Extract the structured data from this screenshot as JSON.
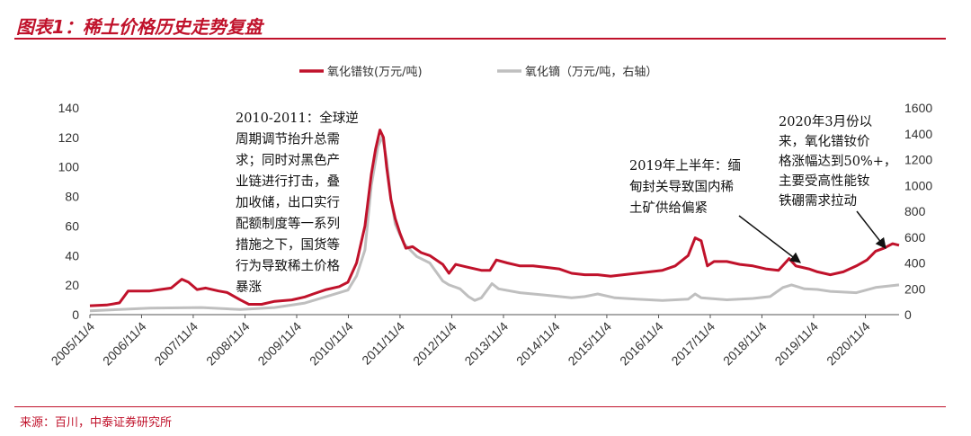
{
  "header": {
    "title": "图表1：稀土价格历史走势复盘"
  },
  "footer": {
    "source": "来源：百川，中泰证券研究所"
  },
  "chart_data": {
    "type": "line",
    "title": "图表1：稀土价格历史走势复盘",
    "x_labels": [
      "2005/11/4",
      "2006/11/4",
      "2007/11/4",
      "2008/11/4",
      "2009/11/4",
      "2010/11/4",
      "2011/11/4",
      "2012/11/4",
      "2013/11/4",
      "2014/11/4",
      "2015/11/4",
      "2016/11/4",
      "2017/11/4",
      "2018/11/4",
      "2019/11/4",
      "2020/11/4"
    ],
    "x_range": [
      "2005-11-04",
      "2021-06-30"
    ],
    "ylim_left": [
      0,
      140
    ],
    "ylim_right": [
      0,
      1600
    ],
    "yticks_left": [
      0,
      20,
      40,
      60,
      80,
      100,
      120,
      140
    ],
    "yticks_right": [
      0,
      200,
      400,
      600,
      800,
      1000,
      1200,
      1400,
      1600
    ],
    "legend_position": "top-center",
    "series": [
      {
        "name": "氧化镨钕(万元/吨)",
        "axis": "left",
        "color": "#c0122b",
        "points": [
          [
            "2005-11-04",
            6
          ],
          [
            "2006-03-01",
            6.5
          ],
          [
            "2006-06-01",
            8
          ],
          [
            "2006-08-01",
            16
          ],
          [
            "2007-01-01",
            16
          ],
          [
            "2007-06-01",
            18
          ],
          [
            "2007-08-15",
            24
          ],
          [
            "2007-10-01",
            22
          ],
          [
            "2007-12-01",
            17
          ],
          [
            "2008-02-01",
            18
          ],
          [
            "2008-05-01",
            16
          ],
          [
            "2008-07-01",
            15
          ],
          [
            "2008-10-01",
            10
          ],
          [
            "2008-12-01",
            7
          ],
          [
            "2009-03-01",
            7
          ],
          [
            "2009-06-01",
            9
          ],
          [
            "2009-10-01",
            10
          ],
          [
            "2010-01-01",
            12
          ],
          [
            "2010-03-01",
            14
          ],
          [
            "2010-06-01",
            17
          ],
          [
            "2010-09-01",
            19
          ],
          [
            "2010-11-01",
            22
          ],
          [
            "2011-01-01",
            35
          ],
          [
            "2011-03-01",
            60
          ],
          [
            "2011-04-15",
            95
          ],
          [
            "2011-05-15",
            112
          ],
          [
            "2011-06-15",
            125
          ],
          [
            "2011-07-10",
            120
          ],
          [
            "2011-08-01",
            100
          ],
          [
            "2011-09-01",
            78
          ],
          [
            "2011-10-01",
            65
          ],
          [
            "2011-11-04",
            55
          ],
          [
            "2011-12-15",
            45
          ],
          [
            "2012-02-01",
            46
          ],
          [
            "2012-04-01",
            42
          ],
          [
            "2012-06-01",
            40
          ],
          [
            "2012-09-01",
            34
          ],
          [
            "2012-10-15",
            28
          ],
          [
            "2012-12-01",
            34
          ],
          [
            "2013-03-01",
            32
          ],
          [
            "2013-06-01",
            30
          ],
          [
            "2013-08-01",
            30
          ],
          [
            "2013-09-15",
            37
          ],
          [
            "2013-12-01",
            35
          ],
          [
            "2014-03-01",
            33
          ],
          [
            "2014-06-01",
            33
          ],
          [
            "2014-09-01",
            32
          ],
          [
            "2014-12-01",
            31
          ],
          [
            "2015-03-01",
            28
          ],
          [
            "2015-06-01",
            27
          ],
          [
            "2015-09-01",
            27
          ],
          [
            "2015-12-01",
            26
          ],
          [
            "2016-03-01",
            27
          ],
          [
            "2016-06-01",
            28
          ],
          [
            "2016-09-01",
            29
          ],
          [
            "2016-12-01",
            30
          ],
          [
            "2017-03-01",
            33
          ],
          [
            "2017-06-01",
            40
          ],
          [
            "2017-07-20",
            52
          ],
          [
            "2017-09-01",
            50
          ],
          [
            "2017-10-15",
            33
          ],
          [
            "2017-12-01",
            36
          ],
          [
            "2018-03-01",
            36
          ],
          [
            "2018-06-01",
            34
          ],
          [
            "2018-09-01",
            33
          ],
          [
            "2018-12-01",
            31
          ],
          [
            "2019-03-01",
            30
          ],
          [
            "2019-05-15",
            38
          ],
          [
            "2019-07-01",
            33
          ],
          [
            "2019-10-01",
            31
          ],
          [
            "2019-12-01",
            29
          ],
          [
            "2020-03-01",
            27
          ],
          [
            "2020-06-01",
            29
          ],
          [
            "2020-09-01",
            33
          ],
          [
            "2020-11-15",
            37
          ],
          [
            "2021-01-15",
            43
          ],
          [
            "2021-03-15",
            45
          ],
          [
            "2021-05-15",
            48
          ],
          [
            "2021-06-30",
            47
          ]
        ]
      },
      {
        "name": "氧化镝（万元/吨，右轴）",
        "axis": "right",
        "color": "#bfbfbf",
        "points": [
          [
            "2005-11-04",
            30
          ],
          [
            "2006-06-01",
            40
          ],
          [
            "2007-01-01",
            50
          ],
          [
            "2008-01-01",
            55
          ],
          [
            "2008-10-01",
            40
          ],
          [
            "2009-01-01",
            45
          ],
          [
            "2009-06-01",
            55
          ],
          [
            "2010-01-01",
            90
          ],
          [
            "2010-06-01",
            140
          ],
          [
            "2010-11-01",
            190
          ],
          [
            "2011-01-01",
            300
          ],
          [
            "2011-03-01",
            500
          ],
          [
            "2011-04-15",
            1000
          ],
          [
            "2011-06-01",
            1300
          ],
          [
            "2011-07-01",
            1380
          ],
          [
            "2011-08-01",
            1200
          ],
          [
            "2011-09-01",
            900
          ],
          [
            "2011-10-01",
            700
          ],
          [
            "2011-12-01",
            550
          ],
          [
            "2012-03-01",
            450
          ],
          [
            "2012-06-01",
            400
          ],
          [
            "2012-09-01",
            260
          ],
          [
            "2012-10-15",
            230
          ],
          [
            "2013-01-01",
            200
          ],
          [
            "2013-03-01",
            140
          ],
          [
            "2013-04-15",
            110
          ],
          [
            "2013-06-01",
            130
          ],
          [
            "2013-08-15",
            240
          ],
          [
            "2013-10-01",
            200
          ],
          [
            "2014-03-01",
            170
          ],
          [
            "2014-09-01",
            150
          ],
          [
            "2015-03-01",
            130
          ],
          [
            "2015-06-01",
            140
          ],
          [
            "2015-09-01",
            160
          ],
          [
            "2016-01-01",
            130
          ],
          [
            "2016-06-01",
            120
          ],
          [
            "2016-12-01",
            110
          ],
          [
            "2017-06-01",
            120
          ],
          [
            "2017-07-20",
            160
          ],
          [
            "2017-09-01",
            130
          ],
          [
            "2018-03-01",
            115
          ],
          [
            "2018-09-01",
            125
          ],
          [
            "2019-01-01",
            140
          ],
          [
            "2019-04-01",
            210
          ],
          [
            "2019-06-01",
            230
          ],
          [
            "2019-09-01",
            200
          ],
          [
            "2019-12-01",
            195
          ],
          [
            "2020-03-01",
            180
          ],
          [
            "2020-09-01",
            170
          ],
          [
            "2021-01-15",
            210
          ],
          [
            "2021-06-30",
            230
          ]
        ]
      }
    ],
    "annotations": [
      {
        "text": [
          "2010-2011：全球逆",
          "周期调节抬升总需",
          "求；同时对黑色产",
          "业链进行打击，叠",
          "加收储，出口实行",
          "配额制度等一系列",
          "措施之下，国货等",
          "行为导致稀土价格",
          "暴涨"
        ]
      },
      {
        "text": [
          "2019年上半年：缅",
          "甸封关导致国内稀",
          "土矿供给偏紧"
        ]
      },
      {
        "text": [
          "2020年3月份以",
          "来，氧化镨钕价",
          "格涨幅达到50%+，",
          "主要受高性能钕",
          "铁硼需求拉动"
        ]
      }
    ]
  }
}
